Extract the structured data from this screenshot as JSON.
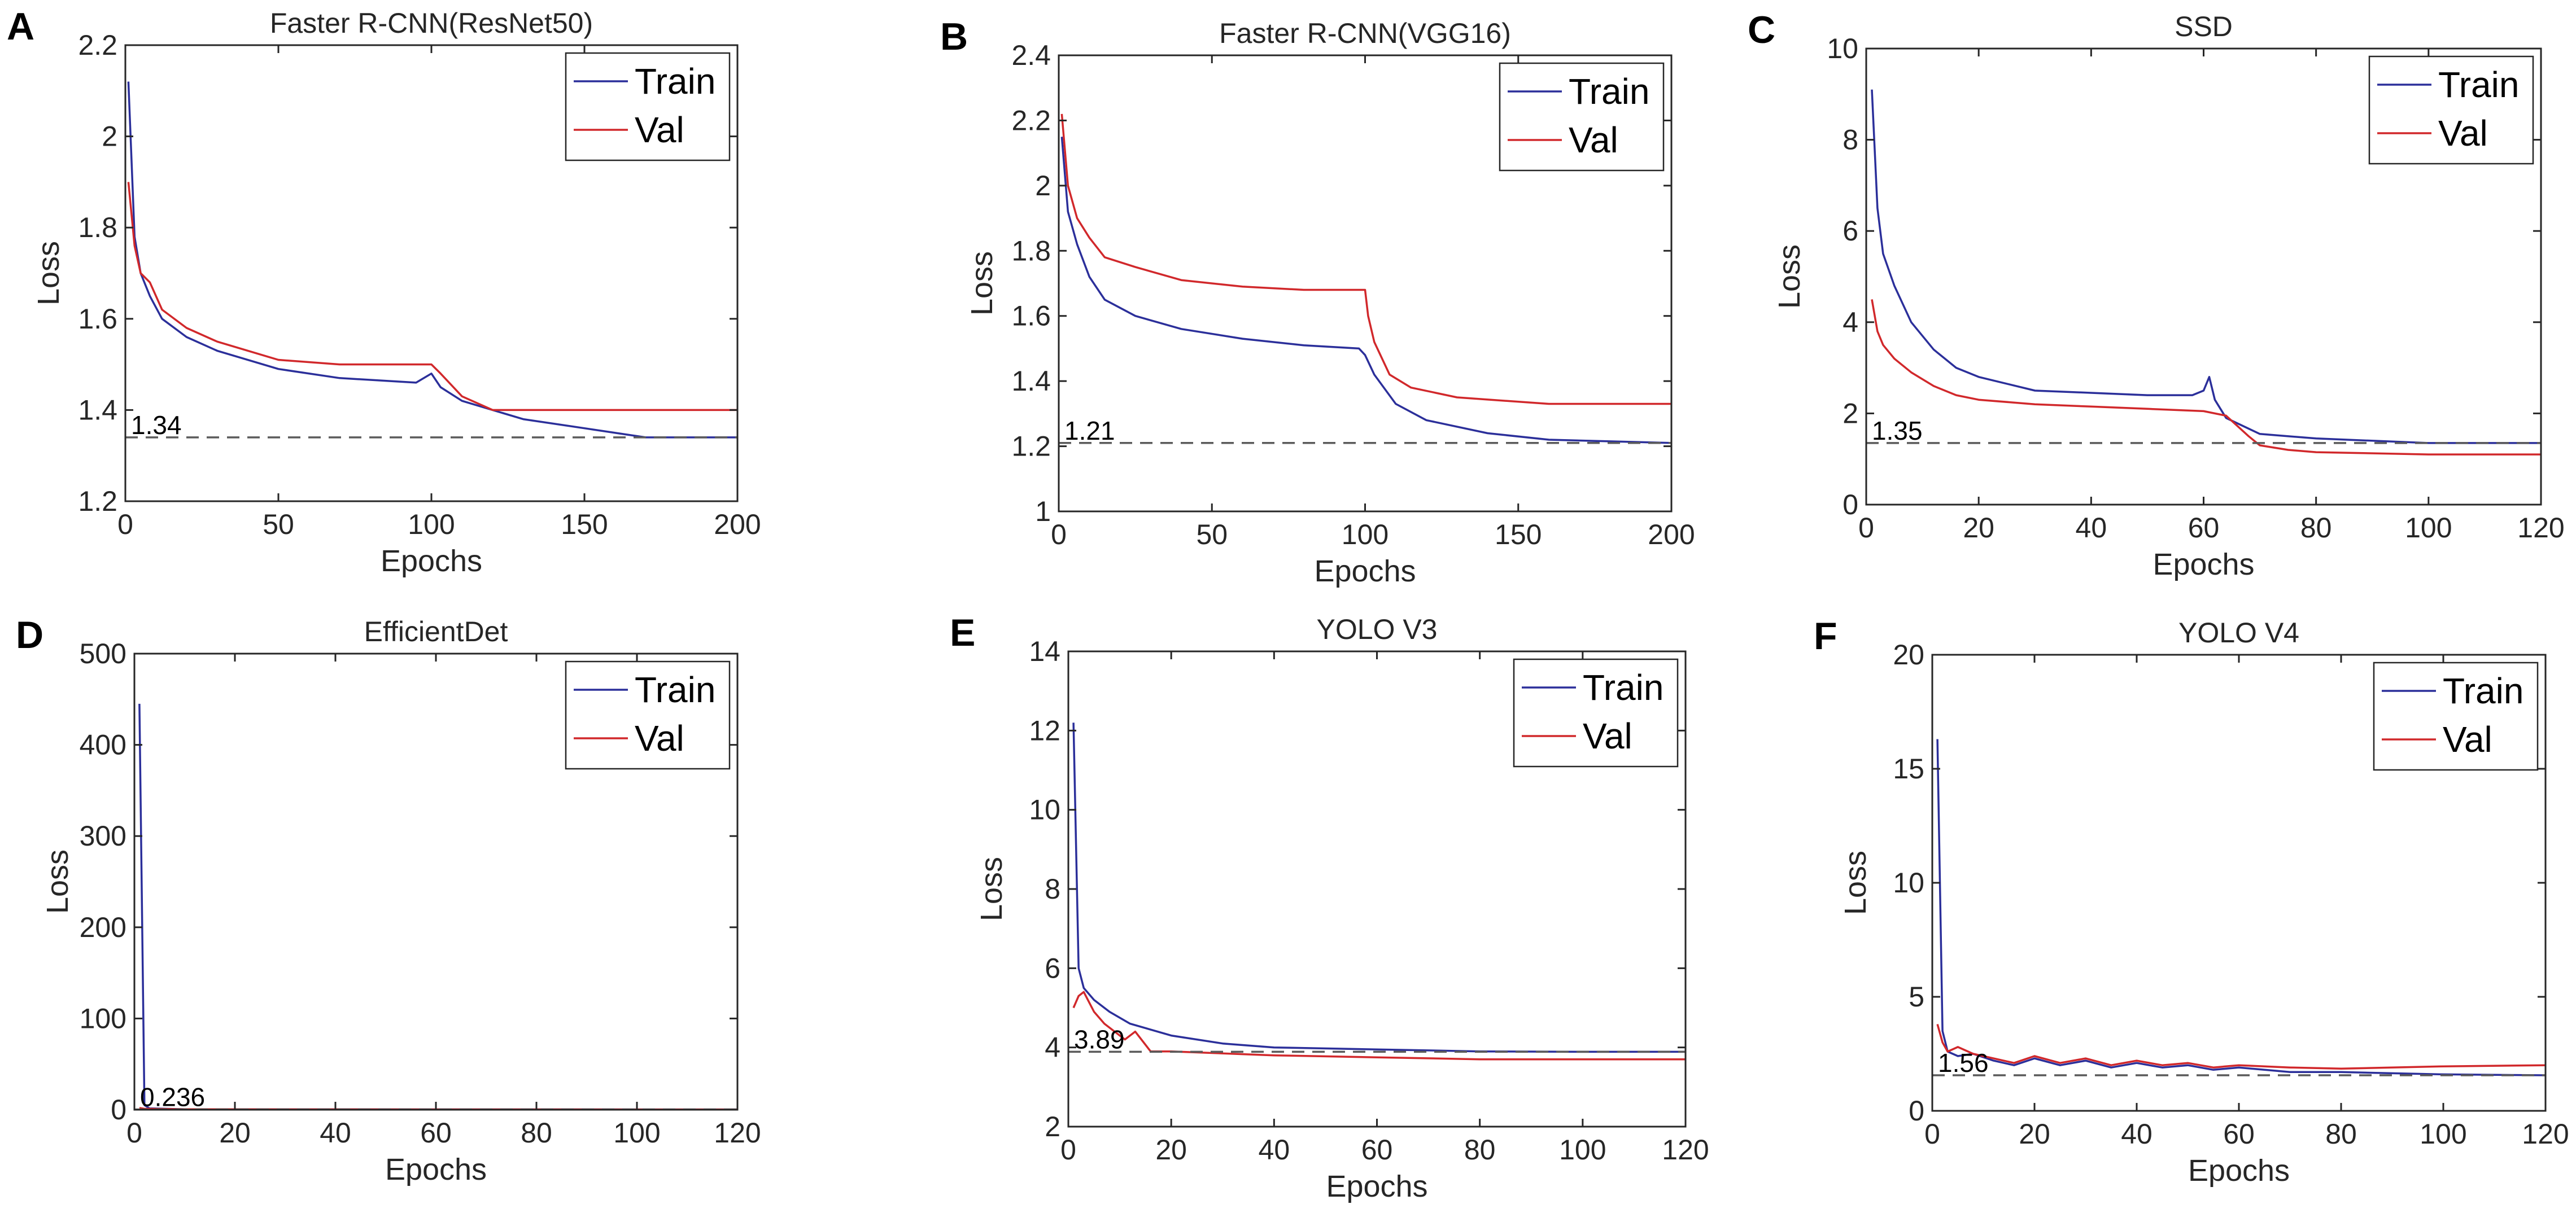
{
  "figure": {
    "colors": {
      "train": "#2b2f9a",
      "val": "#d1282b",
      "axis": "#262626",
      "ref": "#5a5a5a"
    }
  },
  "chart_data": [
    {
      "type": "line",
      "panel_label": "A",
      "title": "Faster R-CNN(ResNet50)",
      "xlabel": "Epochs",
      "ylabel": "Loss",
      "xlim": [
        0,
        200
      ],
      "ylim": [
        1.2,
        2.2
      ],
      "xticks": [
        0,
        50,
        100,
        150,
        200
      ],
      "yticks": [
        1.2,
        1.4,
        1.6,
        1.8,
        2,
        2.2
      ],
      "ytick_labels": [
        "1.2",
        "1.4",
        "1.6",
        "1.8",
        "2",
        "2.2"
      ],
      "legend": {
        "position": "top-right",
        "entries": [
          "Train",
          "Val"
        ]
      },
      "reference": {
        "y": 1.34,
        "label": "1.34"
      },
      "series": [
        {
          "name": "Train",
          "x": [
            1,
            3,
            5,
            8,
            12,
            20,
            30,
            50,
            70,
            95,
            100,
            103,
            110,
            130,
            150,
            170,
            200
          ],
          "y": [
            2.12,
            1.78,
            1.7,
            1.65,
            1.6,
            1.56,
            1.53,
            1.49,
            1.47,
            1.46,
            1.48,
            1.45,
            1.42,
            1.38,
            1.36,
            1.34,
            1.34
          ]
        },
        {
          "name": "Val",
          "x": [
            1,
            3,
            5,
            8,
            12,
            20,
            30,
            50,
            70,
            100,
            103,
            110,
            120,
            150,
            200
          ],
          "y": [
            1.9,
            1.76,
            1.7,
            1.68,
            1.62,
            1.58,
            1.55,
            1.51,
            1.5,
            1.5,
            1.48,
            1.43,
            1.4,
            1.4,
            1.4
          ]
        }
      ]
    },
    {
      "type": "line",
      "panel_label": "B",
      "title": "Faster R-CNN(VGG16)",
      "xlabel": "Epochs",
      "ylabel": "Loss",
      "xlim": [
        0,
        200
      ],
      "ylim": [
        1,
        2.4
      ],
      "xticks": [
        0,
        50,
        100,
        150,
        200
      ],
      "yticks": [
        1,
        1.2,
        1.4,
        1.6,
        1.8,
        2,
        2.2,
        2.4
      ],
      "ytick_labels": [
        "1",
        "1.2",
        "1.4",
        "1.6",
        "1.8",
        "2",
        "2.2",
        "2.4"
      ],
      "legend": {
        "position": "top-right",
        "entries": [
          "Train",
          "Val"
        ]
      },
      "reference": {
        "y": 1.21,
        "label": "1.21"
      },
      "series": [
        {
          "name": "Train",
          "x": [
            1,
            3,
            6,
            10,
            15,
            25,
            40,
            60,
            80,
            98,
            100,
            103,
            110,
            120,
            140,
            160,
            200
          ],
          "y": [
            2.15,
            1.92,
            1.82,
            1.72,
            1.65,
            1.6,
            1.56,
            1.53,
            1.51,
            1.5,
            1.48,
            1.42,
            1.33,
            1.28,
            1.24,
            1.22,
            1.21
          ]
        },
        {
          "name": "Val",
          "x": [
            1,
            3,
            6,
            10,
            15,
            25,
            40,
            60,
            80,
            100,
            101,
            103,
            108,
            115,
            130,
            160,
            200
          ],
          "y": [
            2.22,
            2.0,
            1.9,
            1.84,
            1.78,
            1.75,
            1.71,
            1.69,
            1.68,
            1.68,
            1.6,
            1.52,
            1.42,
            1.38,
            1.35,
            1.33,
            1.33
          ]
        }
      ]
    },
    {
      "type": "line",
      "panel_label": "C",
      "title": "SSD",
      "xlabel": "Epochs",
      "ylabel": "Loss",
      "xlim": [
        0,
        120
      ],
      "ylim": [
        0,
        10
      ],
      "xticks": [
        0,
        20,
        40,
        60,
        80,
        100,
        120
      ],
      "yticks": [
        0,
        2,
        4,
        6,
        8,
        10
      ],
      "ytick_labels": [
        "0",
        "2",
        "4",
        "6",
        "8",
        "10"
      ],
      "legend": {
        "position": "top-right",
        "entries": [
          "Train",
          "Val"
        ]
      },
      "reference": {
        "y": 1.35,
        "label": "1.35"
      },
      "series": [
        {
          "name": "Train",
          "x": [
            1,
            2,
            3,
            5,
            8,
            12,
            16,
            20,
            30,
            40,
            50,
            58,
            60,
            61,
            62,
            64,
            70,
            80,
            100,
            120
          ],
          "y": [
            9.1,
            6.5,
            5.5,
            4.8,
            4.0,
            3.4,
            3.0,
            2.8,
            2.5,
            2.45,
            2.4,
            2.4,
            2.5,
            2.8,
            2.3,
            1.9,
            1.55,
            1.45,
            1.35,
            1.35
          ]
        },
        {
          "name": "Val",
          "x": [
            1,
            2,
            3,
            5,
            8,
            12,
            16,
            20,
            30,
            40,
            50,
            60,
            64,
            68,
            70,
            75,
            80,
            100,
            120
          ],
          "y": [
            4.5,
            3.8,
            3.5,
            3.2,
            2.9,
            2.6,
            2.4,
            2.3,
            2.2,
            2.15,
            2.1,
            2.05,
            1.95,
            1.5,
            1.3,
            1.2,
            1.15,
            1.1,
            1.1
          ]
        }
      ]
    },
    {
      "type": "line",
      "panel_label": "D",
      "title": "EfficientDet",
      "xlabel": "Epochs",
      "ylabel": "Loss",
      "xlim": [
        0,
        120
      ],
      "ylim": [
        0,
        500
      ],
      "xticks": [
        0,
        20,
        40,
        60,
        80,
        100,
        120
      ],
      "yticks": [
        0,
        100,
        200,
        300,
        400,
        500
      ],
      "ytick_labels": [
        "0",
        "100",
        "200",
        "300",
        "400",
        "500"
      ],
      "legend": {
        "position": "top-right",
        "entries": [
          "Train",
          "Val"
        ]
      },
      "reference": {
        "y": 0.236,
        "label": "0.236"
      },
      "series": [
        {
          "name": "Train",
          "x": [
            1,
            2,
            3,
            10,
            60,
            120
          ],
          "y": [
            445,
            5,
            1.5,
            0.5,
            0.3,
            0.24
          ]
        },
        {
          "name": "Val",
          "x": [
            1,
            2,
            10,
            60,
            120
          ],
          "y": [
            2,
            1,
            0.5,
            0.3,
            0.25
          ]
        }
      ]
    },
    {
      "type": "line",
      "panel_label": "E",
      "title": "YOLO V3",
      "xlabel": "Epochs",
      "ylabel": "Loss",
      "xlim": [
        0,
        120
      ],
      "ylim": [
        2,
        14
      ],
      "xticks": [
        0,
        20,
        40,
        60,
        80,
        100,
        120
      ],
      "yticks": [
        2,
        4,
        6,
        8,
        10,
        12,
        14
      ],
      "ytick_labels": [
        "2",
        "4",
        "6",
        "8",
        "10",
        "12",
        "14"
      ],
      "legend": {
        "position": "top-right",
        "entries": [
          "Train",
          "Val"
        ]
      },
      "reference": {
        "y": 3.89,
        "label": "3.89"
      },
      "series": [
        {
          "name": "Train",
          "x": [
            1,
            2,
            3,
            5,
            8,
            12,
            20,
            30,
            40,
            60,
            80,
            100,
            120
          ],
          "y": [
            12.2,
            6.0,
            5.5,
            5.2,
            4.9,
            4.6,
            4.3,
            4.1,
            4.0,
            3.95,
            3.9,
            3.89,
            3.89
          ]
        },
        {
          "name": "Val",
          "x": [
            1,
            2,
            3,
            5,
            7,
            9,
            11,
            13,
            16,
            20,
            30,
            40,
            60,
            80,
            100,
            120
          ],
          "y": [
            5.0,
            5.3,
            5.4,
            4.9,
            4.6,
            4.4,
            4.2,
            4.4,
            3.9,
            3.9,
            3.85,
            3.8,
            3.75,
            3.7,
            3.7,
            3.7
          ]
        }
      ]
    },
    {
      "type": "line",
      "panel_label": "F",
      "title": "YOLO V4",
      "xlabel": "Epochs",
      "ylabel": "Loss",
      "xlim": [
        0,
        120
      ],
      "ylim": [
        0,
        20
      ],
      "xticks": [
        0,
        20,
        40,
        60,
        80,
        100,
        120
      ],
      "yticks": [
        0,
        5,
        10,
        15,
        20
      ],
      "ytick_labels": [
        "0",
        "5",
        "10",
        "15",
        "20"
      ],
      "legend": {
        "position": "top-right",
        "entries": [
          "Train",
          "Val"
        ]
      },
      "reference": {
        "y": 1.56,
        "label": "1.56"
      },
      "series": [
        {
          "name": "Train",
          "x": [
            1,
            2,
            3,
            5,
            8,
            12,
            16,
            20,
            25,
            30,
            35,
            40,
            45,
            50,
            55,
            60,
            70,
            80,
            100,
            120
          ],
          "y": [
            16.3,
            3.5,
            2.6,
            2.4,
            2.5,
            2.2,
            2.0,
            2.3,
            2.0,
            2.2,
            1.9,
            2.1,
            1.9,
            2.0,
            1.8,
            1.9,
            1.7,
            1.7,
            1.6,
            1.56
          ]
        },
        {
          "name": "Val",
          "x": [
            1,
            2,
            3,
            5,
            8,
            12,
            16,
            20,
            25,
            30,
            35,
            40,
            45,
            50,
            55,
            60,
            70,
            80,
            100,
            120
          ],
          "y": [
            3.8,
            3.0,
            2.6,
            2.8,
            2.5,
            2.3,
            2.1,
            2.4,
            2.1,
            2.3,
            2.0,
            2.2,
            2.0,
            2.1,
            1.9,
            2.0,
            1.9,
            1.85,
            1.95,
            2.0
          ]
        }
      ]
    }
  ]
}
